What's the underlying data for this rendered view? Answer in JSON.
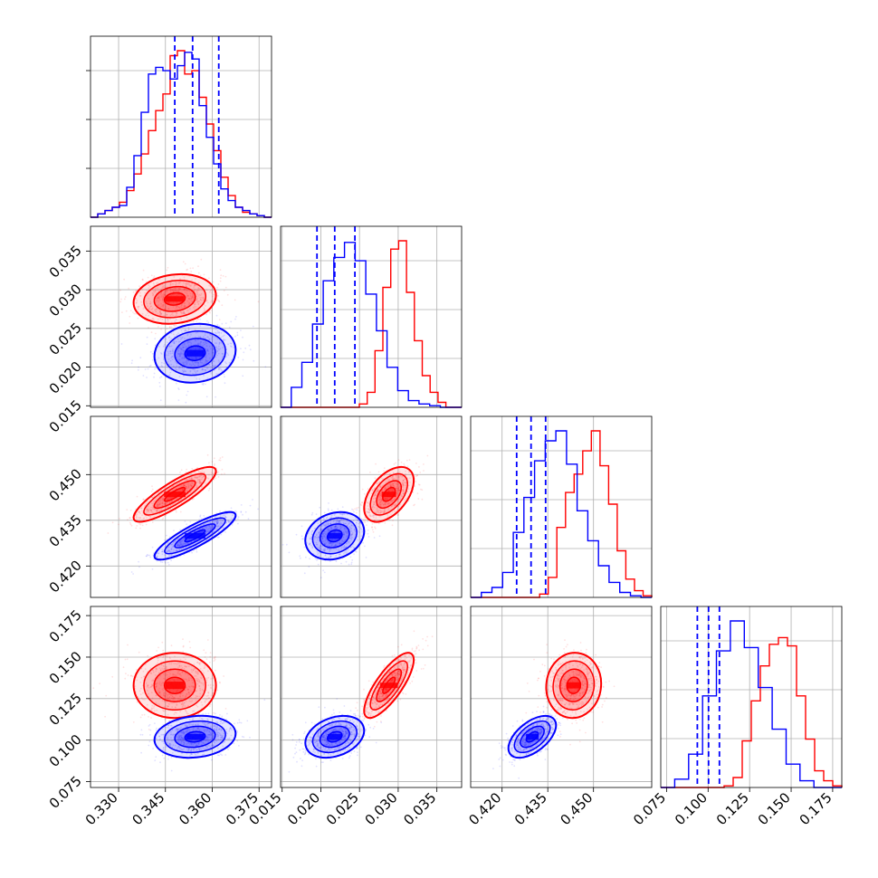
{
  "colors": {
    "red": "#ff0000",
    "blue": "#0000ff",
    "grid": "#b0b0b0",
    "axis": "#000000"
  },
  "chart_data": {
    "type": "corner",
    "grid": true,
    "parameters": [
      {
        "range": [
          0.321,
          0.379
        ],
        "ticks": [
          0.33,
          0.345,
          0.36,
          0.375
        ],
        "tick_labels": [
          "0.330",
          "0.345",
          "0.360",
          "0.375"
        ]
      },
      {
        "range": [
          0.0148,
          0.0382
        ],
        "ticks": [
          0.015,
          0.02,
          0.025,
          0.03,
          0.035
        ],
        "tick_labels": [
          "0.015",
          "0.020",
          "0.025",
          "0.030",
          "0.035"
        ]
      },
      {
        "range": [
          0.4097,
          0.4691
        ],
        "ticks": [
          0.42,
          0.435,
          0.45
        ],
        "tick_labels": [
          "0.420",
          "0.435",
          "0.450"
        ]
      },
      {
        "range": [
          0.0715,
          0.1805
        ],
        "ticks": [
          0.075,
          0.1,
          0.125,
          0.15,
          0.175
        ],
        "tick_labels": [
          "0.075",
          "0.100",
          "0.125",
          "0.150",
          "0.175"
        ]
      }
    ],
    "series": [
      {
        "color": "red",
        "mean": [
          0.348,
          0.0288,
          0.4435,
          0.133
        ],
        "std": [
          0.0066,
          0.0016,
          0.0045,
          0.0098
        ],
        "corr": [
          [
            1.0,
            0.15,
            0.85,
            0.0
          ],
          [
            0.15,
            1.0,
            0.5,
            0.78
          ],
          [
            0.85,
            0.5,
            1.0,
            0.05
          ],
          [
            0.0,
            0.78,
            0.05,
            1.0
          ]
        ],
        "hist_heights": [
          [
            0,
            0.02,
            0.04,
            0.06,
            0.09,
            0.16,
            0.26,
            0.38,
            0.52,
            0.64,
            0.74,
            0.97,
            1.0,
            0.86,
            0.88,
            0.72,
            0.56,
            0.4,
            0.24,
            0.13,
            0.06,
            0.03,
            0.02,
            0.01,
            0
          ],
          [
            0,
            0,
            0,
            0,
            0,
            0,
            0,
            0,
            0,
            0,
            0.02,
            0.09,
            0.34,
            0.72,
            0.95,
            1.0,
            0.69,
            0.4,
            0.19,
            0.09,
            0.03,
            0,
            0
          ],
          [
            0,
            0,
            0,
            0,
            0,
            0,
            0,
            0,
            0.02,
            0.12,
            0.42,
            0.63,
            0.74,
            0.88,
            1.0,
            0.79,
            0.56,
            0.28,
            0.11,
            0.04,
            0.01
          ],
          [
            0,
            0,
            0,
            0,
            0,
            0,
            0,
            0.01,
            0.06,
            0.28,
            0.52,
            0.73,
            0.86,
            0.9,
            0.85,
            0.55,
            0.29,
            0.1,
            0.04,
            0.01
          ]
        ]
      },
      {
        "color": "blue",
        "mean": [
          0.3545,
          0.0218,
          0.4299,
          0.102
        ],
        "std": [
          0.0065,
          0.0019,
          0.0039,
          0.0063
        ],
        "corr": [
          [
            1.0,
            0.1,
            0.86,
            0.15
          ],
          [
            0.1,
            1.0,
            0.2,
            0.3
          ],
          [
            0.86,
            0.2,
            1.0,
            0.55
          ],
          [
            0.15,
            0.3,
            0.55,
            1.0
          ]
        ],
        "quantile_lines": [
          [
            0.348,
            0.3537,
            0.3621
          ],
          [
            0.0195,
            0.0218,
            0.0244
          ],
          [
            0.4248,
            0.4295,
            0.4343
          ],
          [
            0.0935,
            0.1003,
            0.1068
          ]
        ],
        "hist_heights": [
          [
            0,
            0.02,
            0.04,
            0.06,
            0.07,
            0.18,
            0.37,
            0.63,
            0.86,
            0.9,
            0.88,
            0.83,
            0.91,
            0.99,
            0.95,
            0.67,
            0.48,
            0.32,
            0.17,
            0.1,
            0.06,
            0.04,
            0.02,
            0.01,
            0
          ],
          [
            0,
            0.12,
            0.27,
            0.5,
            0.76,
            0.9,
            0.99,
            0.88,
            0.68,
            0.46,
            0.24,
            0.1,
            0.04,
            0.02,
            0.01,
            0,
            0
          ],
          [
            0,
            0.03,
            0.06,
            0.15,
            0.39,
            0.6,
            0.82,
            0.94,
            1.0,
            0.8,
            0.52,
            0.34,
            0.19,
            0.09,
            0.03,
            0.01,
            0
          ],
          [
            0,
            0.05,
            0.2,
            0.55,
            0.82,
            1.0,
            0.84,
            0.6,
            0.35,
            0.14,
            0.04,
            0,
            0
          ]
        ]
      }
    ]
  }
}
